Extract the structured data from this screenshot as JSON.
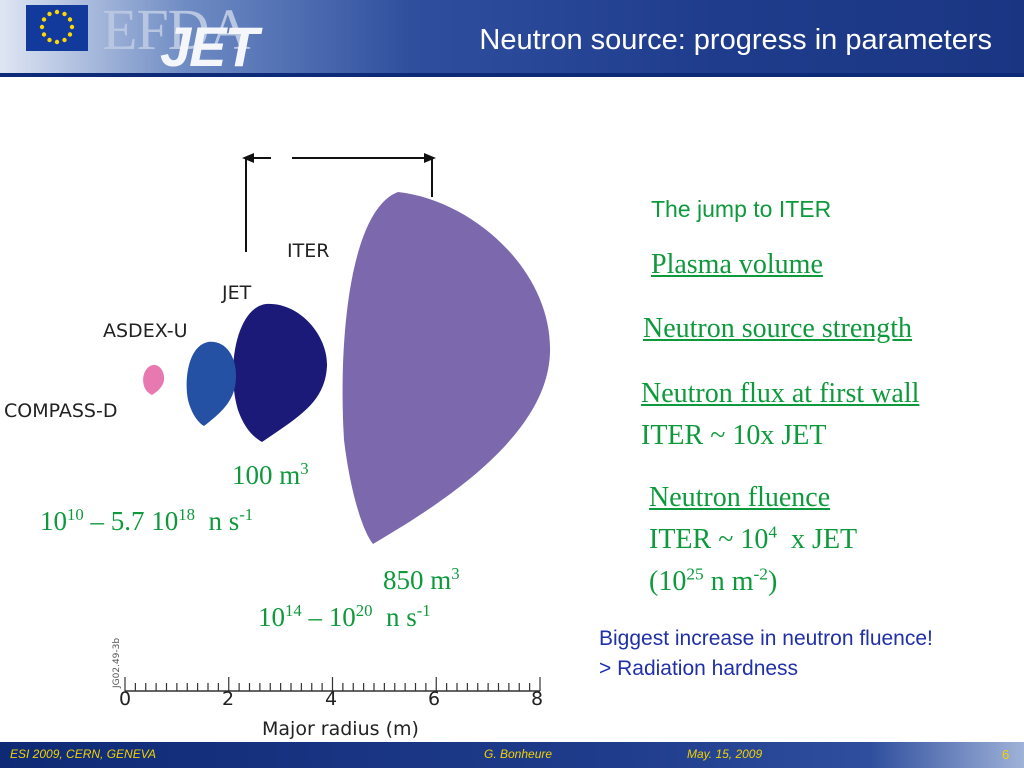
{
  "header": {
    "logo_efda": "EFDA",
    "logo_jet": "JET",
    "title": "Neutron source: progress in parameters"
  },
  "diagram": {
    "labels": {
      "iter": "ITER",
      "jet": "JET",
      "asdex": "ASDEX-U",
      "compass": "COMPASS-D"
    },
    "axis": {
      "ticks": [
        "0",
        "2",
        "4",
        "6",
        "8"
      ],
      "label": "Major radius (m)",
      "ref_code": "JG02.49-3b"
    },
    "jet_volume": "100 m",
    "jet_volume_exp": "3",
    "jet_strength": {
      "a": "10",
      "a_exp": "10",
      "b": " – 5.7 10",
      "b_exp": "18",
      "c": "  n s",
      "c_exp": "-1"
    },
    "iter_volume": "850 m",
    "iter_volume_exp": "3",
    "iter_strength": {
      "a": "10",
      "a_exp": "14",
      "b": " – 10",
      "b_exp": "20",
      "c": "  n s",
      "c_exp": "-1"
    }
  },
  "right": {
    "heading": "The jump to ITER",
    "plasma_volume": "Plasma volume",
    "source_strength": "Neutron source strength",
    "flux": "Neutron flux at first wall",
    "flux_ratio": "ITER ~ 10x JET",
    "fluence": "Neutron fluence",
    "fluence_ratio_a": "ITER ~ 10",
    "fluence_ratio_exp": "4",
    "fluence_ratio_b": "  x JET",
    "fluence_value_a": "(10",
    "fluence_value_exp": "25",
    "fluence_value_b": " n m",
    "fluence_value_exp2": "-2",
    "fluence_value_c": ")",
    "note1": "Biggest increase in neutron fluence!",
    "note2": "> Radiation hardness"
  },
  "footer": {
    "event": "ESI 2009, CERN, GENEVA",
    "author": "G. Bonheure",
    "date": "May. 15, 2009",
    "page": "6"
  },
  "colors": {
    "green_text": "#0e9a3c",
    "blue_text": "#2030a8",
    "iter_shape": "#7b68ad",
    "jet_shape": "#1b1a78",
    "asdex_shape": "#2451a4",
    "compass_shape": "#e879b0",
    "footer_text": "#f1d100"
  }
}
